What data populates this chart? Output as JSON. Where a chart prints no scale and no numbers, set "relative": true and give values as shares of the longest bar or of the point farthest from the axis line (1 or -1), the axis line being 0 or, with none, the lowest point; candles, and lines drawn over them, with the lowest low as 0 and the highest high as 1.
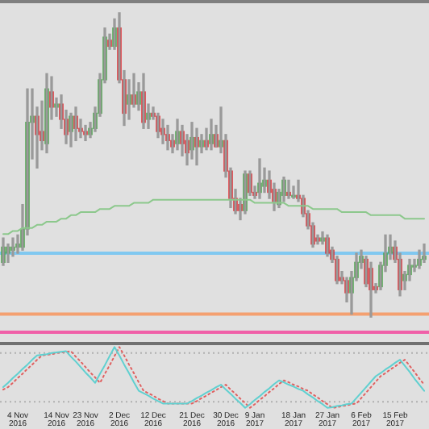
{
  "chart_data": [
    {
      "type": "candlestick",
      "relative": true,
      "tick_labels": false,
      "categories": [
        null,
        null,
        null,
        null,
        null,
        null,
        null,
        null,
        null,
        null,
        null,
        null,
        null,
        null,
        null,
        null,
        null,
        null,
        null,
        null,
        null,
        null,
        null,
        null,
        null,
        null,
        null,
        null,
        null,
        null,
        null,
        null,
        null,
        null,
        null,
        null,
        null,
        null,
        null,
        null,
        null,
        null,
        null,
        null,
        null,
        null,
        null,
        null,
        null,
        null,
        null,
        null,
        null,
        null,
        null,
        null,
        null,
        null,
        null,
        null,
        null,
        null,
        null,
        null,
        null,
        null,
        null,
        null,
        null,
        null,
        null,
        null,
        null,
        null,
        null,
        null,
        null,
        null,
        null,
        null,
        null,
        null,
        null,
        null,
        null,
        null,
        null,
        null
      ],
      "ohlc": [
        [
          0.18,
          0.26,
          0.17,
          0.23
        ],
        [
          0.21,
          0.24,
          0.18,
          0.23
        ],
        [
          0.22,
          0.26,
          0.2,
          0.23
        ],
        [
          0.23,
          0.27,
          0.21,
          0.24
        ],
        [
          0.23,
          0.37,
          0.22,
          0.29
        ],
        [
          0.29,
          0.75,
          0.27,
          0.64
        ],
        [
          0.64,
          0.75,
          0.52,
          0.66
        ],
        [
          0.66,
          0.69,
          0.49,
          0.6
        ],
        [
          0.61,
          0.71,
          0.55,
          0.58
        ],
        [
          0.57,
          0.8,
          0.54,
          0.75
        ],
        [
          0.74,
          0.79,
          0.65,
          0.69
        ],
        [
          0.69,
          0.72,
          0.66,
          0.7
        ],
        [
          0.7,
          0.73,
          0.62,
          0.65
        ],
        [
          0.65,
          0.68,
          0.57,
          0.6
        ],
        [
          0.61,
          0.67,
          0.56,
          0.66
        ],
        [
          0.66,
          0.69,
          0.58,
          0.62
        ],
        [
          0.62,
          0.65,
          0.59,
          0.61
        ],
        [
          0.61,
          0.63,
          0.58,
          0.6
        ],
        [
          0.6,
          0.64,
          0.59,
          0.62
        ],
        [
          0.62,
          0.69,
          0.61,
          0.67
        ],
        [
          0.67,
          0.8,
          0.66,
          0.78
        ],
        [
          0.78,
          0.95,
          0.77,
          0.92
        ],
        [
          0.91,
          0.93,
          0.88,
          0.89
        ],
        [
          0.89,
          0.98,
          0.88,
          0.95
        ],
        [
          0.95,
          1.0,
          0.77,
          0.78
        ],
        [
          0.78,
          0.81,
          0.63,
          0.67
        ],
        [
          0.7,
          0.78,
          0.65,
          0.73
        ],
        [
          0.73,
          0.8,
          0.69,
          0.7
        ],
        [
          0.7,
          0.77,
          0.68,
          0.74
        ],
        [
          0.74,
          0.8,
          0.62,
          0.64
        ],
        [
          0.65,
          0.7,
          0.62,
          0.67
        ],
        [
          0.67,
          0.69,
          0.65,
          0.66
        ],
        [
          0.66,
          0.67,
          0.59,
          0.61
        ],
        [
          0.62,
          0.65,
          0.57,
          0.6
        ],
        [
          0.6,
          0.63,
          0.55,
          0.58
        ],
        [
          0.58,
          0.6,
          0.54,
          0.56
        ],
        [
          0.57,
          0.65,
          0.55,
          0.61
        ],
        [
          0.61,
          0.63,
          0.53,
          0.57
        ],
        [
          0.58,
          0.6,
          0.5,
          0.54
        ],
        [
          0.55,
          0.64,
          0.52,
          0.59
        ],
        [
          0.59,
          0.62,
          0.5,
          0.56
        ],
        [
          0.56,
          0.6,
          0.54,
          0.58
        ],
        [
          0.58,
          0.62,
          0.55,
          0.56
        ],
        [
          0.57,
          0.65,
          0.55,
          0.6
        ],
        [
          0.6,
          0.63,
          0.56,
          0.56
        ],
        [
          0.56,
          0.69,
          0.54,
          0.58
        ],
        [
          0.58,
          0.6,
          0.46,
          0.48
        ],
        [
          0.48,
          0.49,
          0.36,
          0.39
        ],
        [
          0.39,
          0.42,
          0.34,
          0.35
        ],
        [
          0.37,
          0.39,
          0.32,
          0.35
        ],
        [
          0.35,
          0.48,
          0.34,
          0.47
        ],
        [
          0.47,
          0.48,
          0.4,
          0.41
        ],
        [
          0.41,
          0.43,
          0.39,
          0.4
        ],
        [
          0.41,
          0.52,
          0.39,
          0.44
        ],
        [
          0.43,
          0.49,
          0.41,
          0.45
        ],
        [
          0.45,
          0.48,
          0.39,
          0.41
        ],
        [
          0.42,
          0.44,
          0.35,
          0.38
        ],
        [
          0.37,
          0.42,
          0.36,
          0.41
        ],
        [
          0.4,
          0.46,
          0.38,
          0.45
        ],
        [
          0.41,
          0.45,
          0.39,
          0.4
        ],
        [
          0.4,
          0.43,
          0.39,
          0.4
        ],
        [
          0.4,
          0.45,
          0.38,
          0.39
        ],
        [
          0.39,
          0.4,
          0.33,
          0.34
        ],
        [
          0.34,
          0.35,
          0.29,
          0.3
        ],
        [
          0.3,
          0.31,
          0.23,
          0.24
        ],
        [
          0.26,
          0.27,
          0.24,
          0.25
        ],
        [
          0.25,
          0.28,
          0.24,
          0.26
        ],
        [
          0.26,
          0.27,
          0.2,
          0.21
        ],
        [
          0.22,
          0.23,
          0.18,
          0.19
        ],
        [
          0.19,
          0.2,
          0.11,
          0.12
        ],
        [
          0.13,
          0.15,
          0.11,
          0.12
        ],
        [
          0.12,
          0.13,
          0.05,
          0.08
        ],
        [
          0.08,
          0.15,
          0.01,
          0.13
        ],
        [
          0.13,
          0.21,
          0.12,
          0.18
        ],
        [
          0.18,
          0.22,
          0.16,
          0.2
        ],
        [
          0.19,
          0.2,
          0.1,
          0.11
        ],
        [
          0.16,
          0.18,
          0,
          0.09
        ],
        [
          0.1,
          0.11,
          0.08,
          0.09
        ],
        [
          0.1,
          0.18,
          0.09,
          0.17
        ],
        [
          0.17,
          0.27,
          0.15,
          0.21
        ],
        [
          0.21,
          0.27,
          0.19,
          0.23
        ],
        [
          0.23,
          0.25,
          0.18,
          0.19
        ],
        [
          0.19,
          0.21,
          0.07,
          0.09
        ],
        [
          0.12,
          0.15,
          0.09,
          0.14
        ],
        [
          0.14,
          0.19,
          0.12,
          0.17
        ],
        [
          0.17,
          0.19,
          0.15,
          0.17
        ],
        [
          0.17,
          0.22,
          0.16,
          0.19
        ],
        [
          0.19,
          0.24,
          0.18,
          0.2
        ]
      ],
      "ref_lines": [
        {
          "axis": "y",
          "value": 0.21,
          "color": "#80c8f0",
          "line_style": "solid"
        },
        {
          "axis": "y",
          "value": 0.01,
          "color": "#f4a070",
          "line_style": "solid"
        },
        {
          "axis": "y",
          "value": -0.05,
          "color": "#f060a8",
          "line_style": "solid"
        }
      ]
    },
    {
      "type": "line",
      "relative": true,
      "tick_labels": "x",
      "marker": "none",
      "categories": [
        null,
        null,
        null,
        "4 Nov 2016",
        null,
        null,
        null,
        null,
        null,
        null,
        null,
        "14 Nov 2016",
        null,
        null,
        null,
        null,
        null,
        "23 Nov 2016",
        null,
        null,
        null,
        null,
        null,
        null,
        "2 Dec 2016",
        null,
        null,
        null,
        null,
        null,
        null,
        "12 Dec 2016",
        null,
        null,
        null,
        null,
        null,
        null,
        null,
        "21 Dec 2016",
        null,
        null,
        null,
        null,
        null,
        null,
        "30 Dec 2016",
        null,
        null,
        null,
        null,
        null,
        "9 Jan 2017",
        null,
        null,
        null,
        null,
        null,
        null,
        null,
        "18 Jan 2017",
        null,
        null,
        null,
        null,
        null,
        null,
        "27 Jan 2017",
        null,
        null,
        null,
        null,
        null,
        null,
        "6 Feb 2017",
        null,
        null,
        null,
        null,
        null,
        null,
        "15 Feb 2017",
        null,
        null,
        null,
        null,
        null,
        null
      ],
      "series": [
        {
          "color": "#60d0d0",
          "line_style": "solid",
          "values": [
            0.34,
            0.41,
            0.49,
            0.56,
            0.64,
            0.71,
            0.79,
            0.86,
            0.87,
            0.88,
            0.9,
            0.91,
            0.92,
            0.93,
            0.84,
            0.76,
            0.67,
            0.58,
            0.5,
            0.41,
            0.56,
            0.7,
            0.85,
            1.0,
            0.86,
            0.71,
            0.57,
            0.42,
            0.28,
            0.24,
            0.2,
            0.15,
            0.11,
            0.07,
            0.07,
            0.07,
            0.07,
            0.07,
            0.07,
            0.11,
            0.16,
            0.2,
            0.25,
            0.29,
            0.34,
            0.38,
            0.3,
            0.23,
            0.15,
            0.08,
            0,
            0.06,
            0.13,
            0.19,
            0.26,
            0.32,
            0.39,
            0.45,
            0.42,
            0.38,
            0.35,
            0.31,
            0.28,
            0.22,
            0.17,
            0.11,
            0.06,
            0,
            0.01,
            0.03,
            0.04,
            0.06,
            0.07,
            0.16,
            0.25,
            0.34,
            0.43,
            0.52,
            0.57,
            0.63,
            0.68,
            0.74,
            0.79,
            0.69,
            0.59,
            0.48,
            0.38,
            0.28
          ]
        },
        {
          "color": "#e06060",
          "line_style": "dotted",
          "values": [
            0.3,
            0.34,
            0.41,
            0.49,
            0.56,
            0.64,
            0.71,
            0.79,
            0.86,
            0.87,
            0.88,
            0.9,
            0.91,
            0.92,
            0.93,
            0.84,
            0.76,
            0.67,
            0.58,
            0.5,
            0.41,
            0.56,
            0.7,
            0.85,
            1.0,
            0.86,
            0.71,
            0.57,
            0.42,
            0.28,
            0.24,
            0.2,
            0.15,
            0.11,
            0.07,
            0.07,
            0.07,
            0.07,
            0.07,
            0.07,
            0.11,
            0.16,
            0.2,
            0.25,
            0.29,
            0.34,
            0.38,
            0.3,
            0.23,
            0.15,
            0.08,
            0,
            0.06,
            0.13,
            0.19,
            0.26,
            0.32,
            0.39,
            0.45,
            0.42,
            0.38,
            0.35,
            0.31,
            0.28,
            0.22,
            0.17,
            0.11,
            0.06,
            0,
            0.01,
            0.03,
            0.04,
            0.06,
            0.07,
            0.16,
            0.25,
            0.34,
            0.43,
            0.52,
            0.57,
            0.63,
            0.68,
            0.74,
            0.79,
            0.69,
            0.59,
            0.48,
            0.38
          ]
        }
      ],
      "ref_lines": [
        {
          "axis": "y",
          "value": 0.9,
          "color": "#b0b0b0",
          "line_style": "dotted"
        },
        {
          "axis": "y",
          "value": 0.1,
          "color": "#b0b0b0",
          "line_style": "dotted"
        }
      ]
    },
    {
      "type": "line",
      "relative": true,
      "tick_labels": false,
      "marker": "none",
      "categories": [
        null,
        null,
        null,
        null,
        null,
        null,
        null,
        null,
        null,
        null,
        null,
        null,
        null,
        null,
        null,
        null,
        null,
        null,
        null,
        null,
        null,
        null,
        null,
        null,
        null,
        null,
        null,
        null,
        null,
        null,
        null,
        null,
        null,
        null,
        null,
        null,
        null,
        null,
        null,
        null,
        null,
        null,
        null,
        null,
        null,
        null,
        null,
        null,
        null,
        null,
        null,
        null,
        null,
        null,
        null,
        null,
        null,
        null,
        null,
        null,
        null,
        null,
        null,
        null,
        null,
        null,
        null,
        null,
        null,
        null,
        null,
        null,
        null,
        null,
        null,
        null,
        null,
        null,
        null,
        null,
        null,
        null,
        null,
        null,
        null,
        null,
        null,
        null
      ],
      "series": [
        {
          "color": "#8cc88c",
          "line_style": "solid",
          "values": [
            0,
            0,
            0.09,
            0.09,
            0.18,
            0.18,
            0.18,
            0.27,
            0.27,
            0.36,
            0.36,
            0.36,
            0.45,
            0.45,
            0.55,
            0.55,
            0.64,
            0.64,
            0.64,
            0.64,
            0.73,
            0.73,
            0.73,
            0.82,
            0.82,
            0.82,
            0.82,
            0.91,
            0.91,
            0.91,
            0.91,
            1,
            1,
            1,
            1,
            1,
            1,
            1,
            1,
            1,
            1,
            1,
            1,
            1,
            1,
            1,
            1,
            1,
            1,
            1,
            1,
            1,
            0.91,
            0.91,
            0.91,
            0.91,
            0.91,
            0.91,
            0.91,
            0.82,
            0.82,
            0.82,
            0.82,
            0.82,
            0.73,
            0.73,
            0.73,
            0.73,
            0.73,
            0.73,
            0.64,
            0.64,
            0.64,
            0.64,
            0.64,
            0.64,
            0.55,
            0.55,
            0.55,
            0.55,
            0.55,
            0.55,
            0.55,
            0.45,
            0.45,
            0.45,
            0.45,
            0.45
          ]
        }
      ]
    }
  ]
}
